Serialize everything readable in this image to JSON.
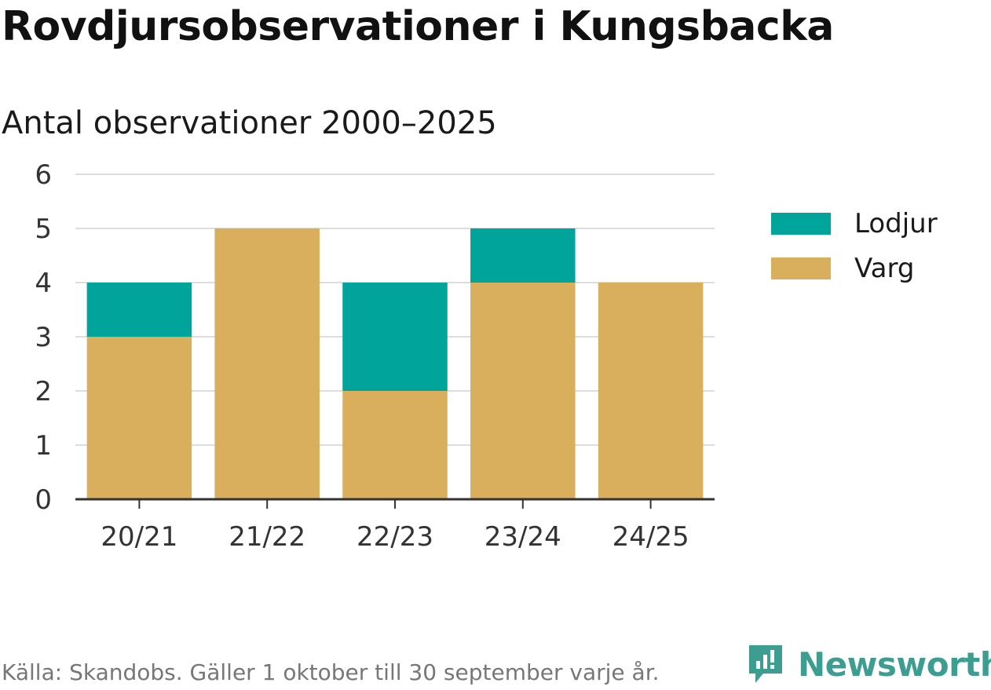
{
  "title": "Rovdjursobservationer i Kungsbacka",
  "subtitle": "Antal observationer 2000–2025",
  "source": "Källa: Skandobs. Gäller 1 oktober till 30 september varje år.",
  "brand": "Newsworthy",
  "colors": {
    "lodjur": "#00a49a",
    "varg": "#d9ae5c",
    "grid": "#dddddd",
    "axis": "#333333",
    "brand": "#3d9d91"
  },
  "chart_data": {
    "type": "bar",
    "stacked": true,
    "categories": [
      "20/21",
      "21/22",
      "22/23",
      "23/24",
      "24/25"
    ],
    "series": [
      {
        "name": "Varg",
        "values": [
          3,
          5,
          2,
          4,
          4
        ]
      },
      {
        "name": "Lodjur",
        "values": [
          1,
          0,
          2,
          1,
          0
        ]
      }
    ],
    "yticks": [
      0,
      1,
      2,
      3,
      4,
      5,
      6
    ],
    "ylim": [
      0,
      6
    ],
    "grid": true,
    "legend": "right",
    "legend_order": [
      "Lodjur",
      "Varg"
    ]
  }
}
